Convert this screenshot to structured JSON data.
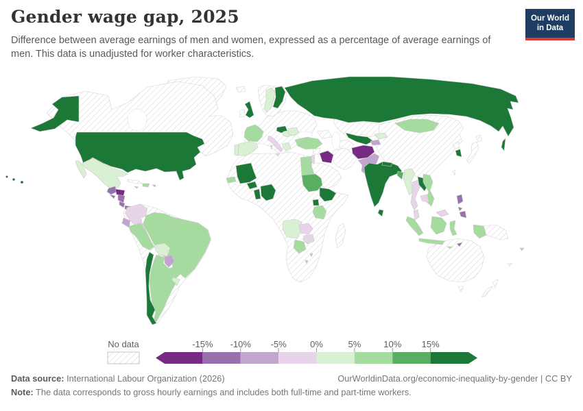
{
  "header": {
    "title": "Gender wage gap, 2025",
    "subtitle": "Difference between average earnings of men and women, expressed as a percentage of average earnings of men. This data is unadjusted for worker characteristics.",
    "logo": {
      "line1": "Our World",
      "line2": "in Data",
      "bg_color": "#1d3d63",
      "accent_color": "#d73a35"
    }
  },
  "legend": {
    "no_data_label": "No data",
    "tick_labels": [
      "-15%",
      "-10%",
      "-5%",
      "0%",
      "5%",
      "10%",
      "15%"
    ],
    "hatch_color": "#dedede",
    "bins": [
      {
        "label": "< -15%",
        "color": "#762a83"
      },
      {
        "label": "-15% to -10%",
        "color": "#9970ab"
      },
      {
        "label": "-10% to -5%",
        "color": "#c2a5cf"
      },
      {
        "label": "-5% to 0%",
        "color": "#e7d4e8"
      },
      {
        "label": "0% to 5%",
        "color": "#d9f0d3"
      },
      {
        "label": "5% to 10%",
        "color": "#a6dba0"
      },
      {
        "label": "10% to 15%",
        "color": "#5aae61"
      },
      {
        "label": "> 15%",
        "color": "#1b7837"
      }
    ]
  },
  "footer": {
    "source_label": "Data source:",
    "source_text": " International Labour Organization (2026)",
    "url_text": "OurWorldinData.org/economic-inequality-by-gender | CC BY",
    "note_label": "Note:",
    "note_text": " The data corresponds to gross hourly earnings and includes both full-time and part-time workers."
  },
  "chart_data": {
    "type": "heatmap",
    "subtype": "choropleth-world-map",
    "title": "Gender wage gap, 2025",
    "unit": "% of average male earnings",
    "legend_position": "bottom",
    "bin_edges_percent": [
      -15,
      -10,
      -5,
      0,
      5,
      10,
      15
    ],
    "countries": {
      "united-states": 7,
      "mexico": 4,
      "guatemala": 1,
      "honduras": 0,
      "el-salvador": 1,
      "nicaragua": 1,
      "costa-rica": 1,
      "panama": 1,
      "jamaica": 5,
      "dominican-republic": 5,
      "puerto-rico": 2,
      "colombia": 3,
      "ecuador": 2,
      "peru": 5,
      "brazil": 5,
      "bolivia": 4,
      "paraguay": 2,
      "uruguay": 4,
      "argentina": 5,
      "chile": 7,
      "guyana": 5,
      "united-kingdom": 7,
      "sweden": 4,
      "finland": 7,
      "france": 5,
      "spain": 4,
      "portugal": 4,
      "italy": 3,
      "austria": 7,
      "hungary": 4,
      "romania": 4,
      "greece": 4,
      "russia": 7,
      "turkey": 5,
      "egypt": 5,
      "sudan": 6,
      "ethiopia": 7,
      "uganda": 7,
      "tanzania": 5,
      "angola": 4,
      "zambia": 3,
      "zimbabwe": 3,
      "botswana": 5,
      "senegal": 5,
      "mali": 7,
      "burkina-faso": 7,
      "benin": 7,
      "nigeria": 7,
      "eswatini": 5,
      "lesotho": 5,
      "iraq": 0,
      "israel": 3,
      "afghanistan": 0,
      "pakistan": 2,
      "uzbekistan": 7,
      "kyrgyzstan": 4,
      "tajikistan": 2,
      "india": 7,
      "nepal": 7,
      "sri-lanka": 7,
      "bangladesh": 6,
      "myanmar": 4,
      "thailand": 3,
      "laos": 7,
      "vietnam": 5,
      "cambodia": 3,
      "malaysia": 3,
      "indonesia": 5,
      "philippines": 1,
      "timor-leste": 1,
      "mongolia": 5,
      "south-korea": 7,
      "fiji": 5
    },
    "no_data_countries": [
      "canada",
      "greenland",
      "iceland",
      "ireland",
      "norway",
      "germany",
      "poland",
      "ukraine",
      "balkans",
      "cuba",
      "venezuela",
      "suriname",
      "morocco",
      "algeria",
      "libya",
      "niger",
      "chad",
      "dr-congo",
      "kenya",
      "somalia",
      "namibia",
      "south-africa",
      "mozambique",
      "madagascar",
      "saudi-arabia",
      "yemen",
      "oman",
      "iran",
      "syria",
      "caucasus",
      "kazakhstan",
      "turkmenistan",
      "china",
      "north-korea",
      "japan",
      "taiwan",
      "papua-new-guinea",
      "australia",
      "new-zealand",
      "new-caledonia"
    ]
  }
}
